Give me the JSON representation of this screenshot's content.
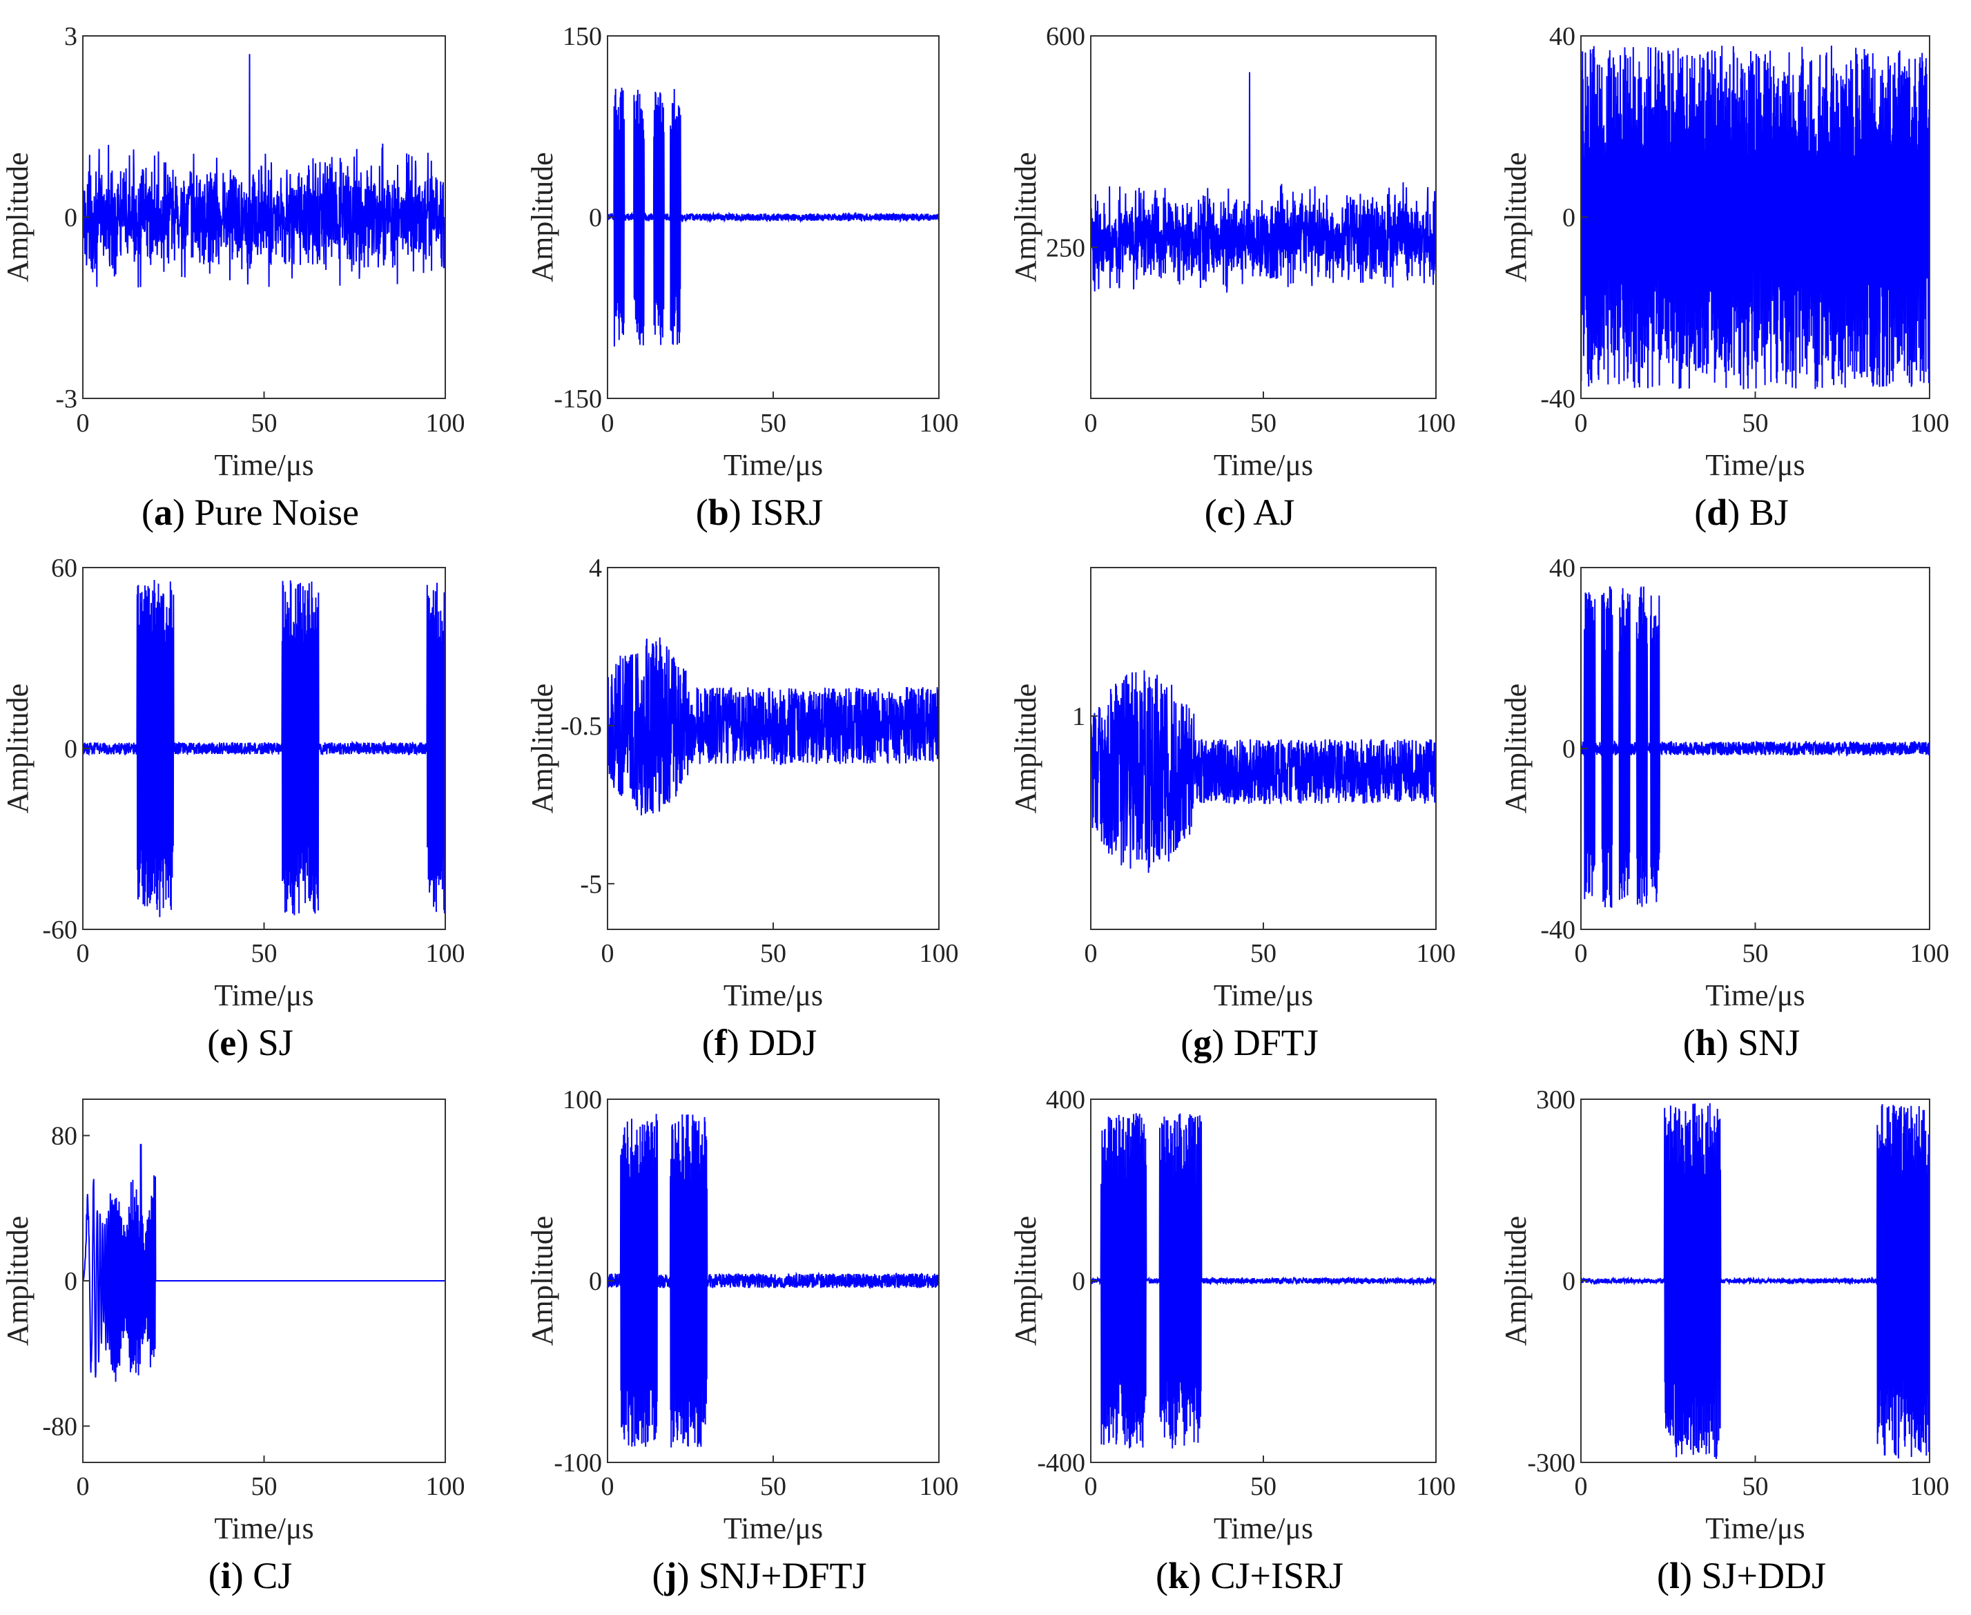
{
  "figure": {
    "colors": {
      "signal": "#0000ff",
      "axis": "#333333"
    },
    "caption_labels": [
      "(a)",
      "(b)",
      "(c)",
      "(d)",
      "(e)",
      "(f)",
      "(g)",
      "(h)",
      "(i)",
      "(j)",
      "(k)",
      "(l)"
    ]
  },
  "chart_data": [
    {
      "type": "line",
      "caption_letter": "a",
      "caption_text": "Pure Noise",
      "xlabel": "Time/μs",
      "ylabel": "Amplitude",
      "xlim": [
        0,
        100
      ],
      "ylim": [
        -3,
        3
      ],
      "xticks": [
        "0",
        "50",
        "100"
      ],
      "yticks": [
        "-3",
        "0",
        "3"
      ],
      "signal": {
        "kind": "noise",
        "base": 0,
        "amp": 1.3,
        "peak": 2.7
      }
    },
    {
      "type": "line",
      "caption_letter": "b",
      "caption_text": "ISRJ",
      "xlabel": "Time/μs",
      "ylabel": "Amplitude",
      "xlim": [
        0,
        100
      ],
      "ylim": [
        -150,
        150
      ],
      "xticks": [
        "0",
        "50",
        "100"
      ],
      "yticks": [
        "-150",
        "0",
        "150"
      ],
      "signal": {
        "kind": "bursts",
        "bursts": [
          [
            2,
            5
          ],
          [
            8,
            11
          ],
          [
            14,
            17
          ],
          [
            19,
            22
          ]
        ],
        "burst_amp": 108,
        "floor_amp": 3
      }
    },
    {
      "type": "line",
      "caption_letter": "c",
      "caption_text": "AJ",
      "xlabel": "Time/μs",
      "ylabel": "Amplitude",
      "xlim": [
        0,
        100
      ],
      "ylim": [
        0,
        600
      ],
      "xticks": [
        "0",
        "50",
        "100"
      ],
      "yticks": [
        "250",
        "600"
      ],
      "signal": {
        "kind": "noise",
        "base": 265,
        "amp": 105,
        "peak": 540
      }
    },
    {
      "type": "line",
      "caption_letter": "d",
      "caption_text": "BJ",
      "xlabel": "Time/μs",
      "ylabel": "Amplitude",
      "xlim": [
        0,
        100
      ],
      "ylim": [
        -40,
        40
      ],
      "xticks": [
        "0",
        "50",
        "100"
      ],
      "yticks": [
        "-40",
        "0",
        "40"
      ],
      "signal": {
        "kind": "uniform",
        "amp": 38
      }
    },
    {
      "type": "line",
      "caption_letter": "e",
      "caption_text": "SJ",
      "xlabel": "Time/μs",
      "ylabel": "Amplitude",
      "xlim": [
        0,
        100
      ],
      "ylim": [
        -60,
        60
      ],
      "xticks": [
        "0",
        "50",
        "100"
      ],
      "yticks": [
        "-60",
        "0",
        "60"
      ],
      "signal": {
        "kind": "bursts",
        "bursts": [
          [
            15,
            25
          ],
          [
            55,
            65
          ],
          [
            95,
            100
          ]
        ],
        "burst_amp": 56,
        "floor_amp": 2
      }
    },
    {
      "type": "line",
      "caption_letter": "f",
      "caption_text": "DDJ",
      "xlabel": "Time/μs",
      "ylabel": "Amplitude",
      "xlim": [
        0,
        100
      ],
      "ylim": [
        -6.3,
        4
      ],
      "xticks": [
        "0",
        "50",
        "100"
      ],
      "yticks": [
        "-5",
        "-0.5",
        "4"
      ],
      "signal": {
        "kind": "decay",
        "base": -0.5,
        "amp": 1.1,
        "early_amp": 2.6,
        "early_end": 25
      }
    },
    {
      "type": "line",
      "caption_letter": "g",
      "caption_text": "DFTJ",
      "xlabel": "Time/μs",
      "ylabel": "Amplitude",
      "xlim": [
        0,
        100
      ],
      "ylim": [
        -1.3,
        2.6
      ],
      "xticks": [
        "0",
        "50",
        "100"
      ],
      "yticks": [
        "1"
      ],
      "signal": {
        "kind": "decay",
        "base": 0.4,
        "amp": 0.35,
        "early_amp": 1.1,
        "early_end": 30
      }
    },
    {
      "type": "line",
      "caption_letter": "h",
      "caption_text": "SNJ",
      "xlabel": "Time/μs",
      "ylabel": "Amplitude",
      "xlim": [
        0,
        100
      ],
      "ylim": [
        -40,
        40
      ],
      "xticks": [
        "0",
        "50",
        "100"
      ],
      "yticks": [
        "-40",
        "0",
        "40"
      ],
      "signal": {
        "kind": "bursts",
        "bursts": [
          [
            1,
            4
          ],
          [
            6,
            9
          ],
          [
            11,
            14
          ],
          [
            16,
            19
          ],
          [
            20,
            22.5
          ]
        ],
        "burst_amp": 36,
        "floor_amp": 1.5
      }
    },
    {
      "type": "line",
      "caption_letter": "i",
      "caption_text": "CJ",
      "xlabel": "Time/μs",
      "ylabel": "Amplitude",
      "xlim": [
        0,
        100
      ],
      "ylim": [
        -100,
        100
      ],
      "xticks": [
        "0",
        "50",
        "100"
      ],
      "yticks": [
        "-80",
        "0",
        "80"
      ],
      "signal": {
        "kind": "chirp",
        "end": 20,
        "amp": 60,
        "peak": 75
      }
    },
    {
      "type": "line",
      "caption_letter": "j",
      "caption_text": "SNJ+DFTJ",
      "xlabel": "Time/μs",
      "ylabel": "Amplitude",
      "xlim": [
        0,
        100
      ],
      "ylim": [
        -100,
        100
      ],
      "xticks": [
        "0",
        "50",
        "100"
      ],
      "yticks": [
        "-100",
        "0",
        "100"
      ],
      "signal": {
        "kind": "bursts",
        "bursts": [
          [
            4,
            15
          ],
          [
            19,
            30
          ]
        ],
        "burst_amp": 92,
        "floor_amp": 4
      }
    },
    {
      "type": "line",
      "caption_letter": "k",
      "caption_text": "CJ+ISRJ",
      "xlabel": "Time/μs",
      "ylabel": "Amplitude",
      "xlim": [
        0,
        100
      ],
      "ylim": [
        -400,
        400
      ],
      "xticks": [
        "0",
        "50",
        "100"
      ],
      "yticks": [
        "-400",
        "0",
        "400"
      ],
      "signal": {
        "kind": "bursts",
        "bursts": [
          [
            3,
            16
          ],
          [
            20,
            32
          ]
        ],
        "burst_amp": 370,
        "floor_amp": 6
      }
    },
    {
      "type": "line",
      "caption_letter": "l",
      "caption_text": "SJ+DDJ",
      "xlabel": "Time/μs",
      "ylabel": "Amplitude",
      "xlim": [
        0,
        100
      ],
      "ylim": [
        -300,
        300
      ],
      "xticks": [
        "0",
        "50",
        "100"
      ],
      "yticks": [
        "-300",
        "0",
        "300"
      ],
      "signal": {
        "kind": "bursts",
        "bursts": [
          [
            24,
            40
          ],
          [
            85,
            100
          ]
        ],
        "burst_amp": 295,
        "floor_amp": 4
      }
    }
  ]
}
